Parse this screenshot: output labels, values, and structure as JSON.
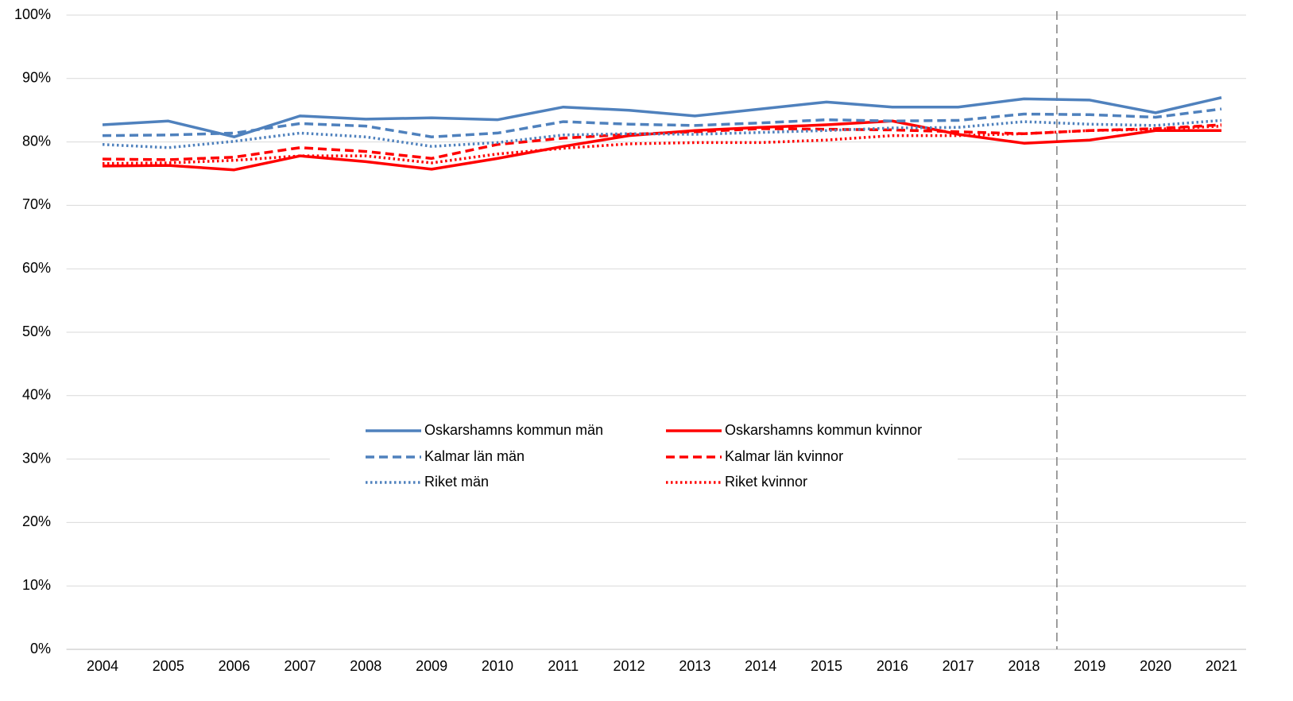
{
  "chart_data": {
    "type": "line",
    "categories": [
      "2004",
      "2005",
      "2006",
      "2007",
      "2008",
      "2009",
      "2010",
      "2011",
      "2012",
      "2013",
      "2014",
      "2015",
      "2016",
      "2017",
      "2018",
      "2019",
      "2020",
      "2021"
    ],
    "series": [
      {
        "name": "Oskarshamns kommun män",
        "color": "#4f81bd",
        "dash": "solid",
        "values": [
          82.7,
          83.3,
          80.8,
          84.1,
          83.6,
          83.8,
          83.5,
          85.5,
          85.0,
          84.1,
          85.2,
          86.3,
          85.5,
          85.5,
          86.8,
          86.6,
          84.6,
          87.0
        ]
      },
      {
        "name": "Oskarshamns kommun kvinnor",
        "color": "#ff0000",
        "dash": "solid",
        "values": [
          76.2,
          76.3,
          75.6,
          77.8,
          76.9,
          75.7,
          77.4,
          79.3,
          81.0,
          81.8,
          82.3,
          82.7,
          83.3,
          81.2,
          79.8,
          80.3,
          81.8,
          81.8
        ]
      },
      {
        "name": "Kalmar län män",
        "color": "#4f81bd",
        "dash": "dashed",
        "values": [
          81.0,
          81.1,
          81.4,
          82.9,
          82.5,
          80.8,
          81.4,
          83.2,
          82.8,
          82.6,
          83.0,
          83.5,
          83.3,
          83.4,
          84.4,
          84.3,
          83.9,
          85.2
        ]
      },
      {
        "name": "Kalmar län kvinnor",
        "color": "#ff0000",
        "dash": "dashed",
        "values": [
          77.3,
          77.2,
          77.6,
          79.1,
          78.5,
          77.4,
          79.6,
          80.6,
          81.2,
          81.6,
          82.1,
          82.0,
          81.9,
          81.6,
          81.3,
          81.8,
          82.1,
          82.7
        ]
      },
      {
        "name": "Riket män",
        "color": "#4f81bd",
        "dash": "dotted",
        "values": [
          79.6,
          79.1,
          80.1,
          81.4,
          80.8,
          79.3,
          79.9,
          81.1,
          81.3,
          81.2,
          81.5,
          81.8,
          82.2,
          82.3,
          83.2,
          82.8,
          82.6,
          83.4
        ]
      },
      {
        "name": "Riket kvinnor",
        "color": "#ff0000",
        "dash": "dotted",
        "values": [
          76.6,
          76.7,
          77.1,
          77.8,
          77.8,
          76.7,
          78.1,
          79.0,
          79.7,
          79.9,
          79.9,
          80.3,
          81.0,
          81.0,
          81.3,
          81.8,
          82.0,
          82.5
        ]
      }
    ],
    "ylim": [
      0,
      100
    ],
    "yticks": [
      {
        "value": 0,
        "label": "0%"
      },
      {
        "value": 10,
        "label": "10%"
      },
      {
        "value": 20,
        "label": "20%"
      },
      {
        "value": 30,
        "label": "30%"
      },
      {
        "value": 40,
        "label": "40%"
      },
      {
        "value": 50,
        "label": "50%"
      },
      {
        "value": 60,
        "label": "60%"
      },
      {
        "value": 70,
        "label": "70%"
      },
      {
        "value": 80,
        "label": "80%"
      },
      {
        "value": 90,
        "label": "90%"
      },
      {
        "value": 100,
        "label": "100%"
      }
    ],
    "grid": true,
    "legend": "center",
    "vertical_line": {
      "after": "2018",
      "style": "dashed"
    }
  }
}
